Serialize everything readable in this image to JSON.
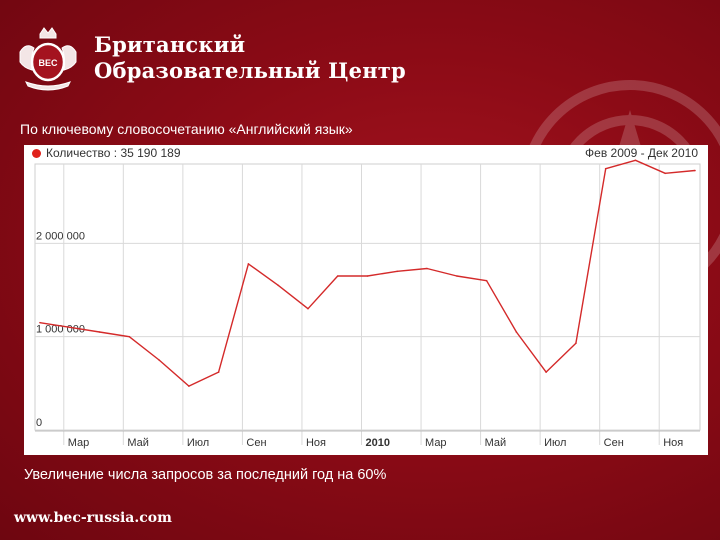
{
  "header": {
    "brand_line1": "Британский",
    "brand_line2": "Образовательный Центр",
    "logo_text": "BEC"
  },
  "subtitle": "По ключевому словосочетанию «Английский язык»",
  "footnote": "Увеличение числа запросов за последний год на 60%",
  "footer": {
    "url": "www.bec-russia.com"
  },
  "colors": {
    "background": "#8c0b16",
    "line": "#d42a2a",
    "grid": "#d9d9d9",
    "legend_dot": "#e0221b"
  },
  "chart_data": {
    "type": "line",
    "legend": "Количество : 35 190 189",
    "range_label": "Фев 2009 - Дек 2010",
    "x_tick_labels": [
      "Мар",
      "Май",
      "Июл",
      "Сен",
      "Ноя",
      "2010",
      "Мар",
      "Май",
      "Июл",
      "Сен",
      "Ноя"
    ],
    "y_tick_labels": [
      "0",
      "1 000 000",
      "2 000 000"
    ],
    "y_ticks": [
      0,
      1000000,
      2000000
    ],
    "ylim": [
      0,
      2850000
    ],
    "grid": true,
    "series": [
      {
        "name": "Количество",
        "x": [
          "2009-02",
          "2009-03",
          "2009-04",
          "2009-05",
          "2009-06",
          "2009-07",
          "2009-08",
          "2009-09",
          "2009-10",
          "2009-11",
          "2009-12",
          "2010-01",
          "2010-02",
          "2010-03",
          "2010-04",
          "2010-05",
          "2010-06",
          "2010-07",
          "2010-08",
          "2010-09",
          "2010-10",
          "2010-11",
          "2010-12"
        ],
        "values": [
          1150000,
          1100000,
          1050000,
          1000000,
          750000,
          470000,
          620000,
          1780000,
          1550000,
          1300000,
          1650000,
          1650000,
          1700000,
          1730000,
          1650000,
          1600000,
          1050000,
          620000,
          930000,
          2800000,
          2890000,
          2750000,
          2780000
        ]
      }
    ]
  }
}
